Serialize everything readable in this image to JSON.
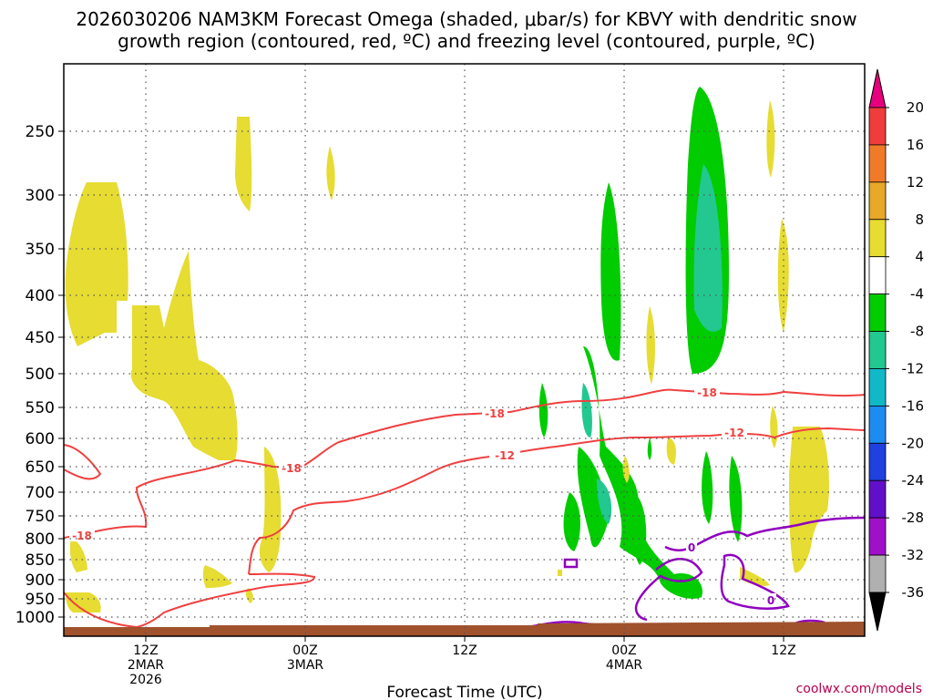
{
  "title_line1": "2026030206 NAM3KM Forecast Omega (shaded, μbar/s) for KBVY with dendritic snow",
  "title_line2": "growth region (contoured, red, ºC) and freezing level (contoured, purple, ºC)",
  "source": "coolwx.com/models",
  "chart_data": {
    "type": "time-height cross section",
    "xlabel": "Forecast Time (UTC)",
    "x_ticks": [
      {
        "line1": "12Z",
        "line2": "2MAR",
        "line3": "2026"
      },
      {
        "line1": "00Z",
        "line2": "3MAR",
        "line3": ""
      },
      {
        "line1": "12Z",
        "line2": "",
        "line3": ""
      },
      {
        "line1": "00Z",
        "line2": "4MAR",
        "line3": ""
      },
      {
        "line1": "12Z",
        "line2": "",
        "line3": ""
      }
    ],
    "y_ticks": [
      "250",
      "300",
      "350",
      "400",
      "450",
      "500",
      "550",
      "600",
      "650",
      "700",
      "750",
      "800",
      "850",
      "900",
      "950",
      "1000"
    ],
    "y_unit": "hPa",
    "colorbar": {
      "labels": [
        "20",
        "16",
        "12",
        "8",
        "4",
        "-4",
        "-8",
        "-12",
        "-16",
        "-20",
        "-24",
        "-28",
        "-32",
        "-36"
      ],
      "colors": [
        "#e6007e",
        "#f03c3c",
        "#f07a28",
        "#e8a828",
        "#e6dc32",
        "#ffffff",
        "#00cc00",
        "#22c890",
        "#10b8c8",
        "#1c8cf0",
        "#2040e0",
        "#6010c8",
        "#a010c8",
        "#b0b0b0",
        "#000000"
      ]
    },
    "dgz_contours": [
      {
        "value": -12,
        "label": "-12"
      },
      {
        "value": -18,
        "label": "-18"
      }
    ],
    "freezing_contour": {
      "value": 0,
      "label": "0"
    },
    "contour_colors": {
      "dgz": "#f04040",
      "freezing": "#9000c0",
      "terrain": "#a0522d"
    }
  }
}
